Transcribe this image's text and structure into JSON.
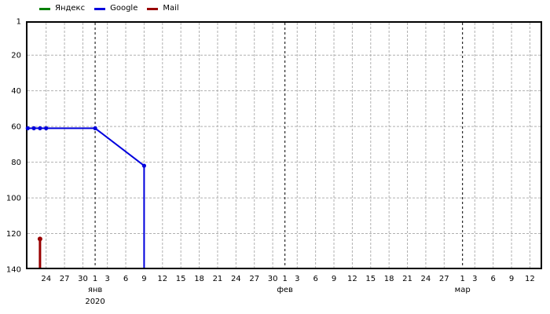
{
  "chart_data": {
    "type": "line",
    "title": "",
    "background": "#ffffff",
    "legend": {
      "position": "top-left",
      "items": [
        {
          "label": "Яндекс",
          "color": "#008000"
        },
        {
          "label": "Google",
          "color": "#0000dd"
        },
        {
          "label": "Mail",
          "color": "#990000"
        }
      ]
    },
    "y_axis": {
      "inverted": true,
      "min": 1,
      "max": 140,
      "ticks": [
        1,
        20,
        40,
        60,
        80,
        100,
        120,
        140
      ],
      "gridlines": "dashed-gray"
    },
    "x_axis": {
      "unit": "days-from-jan-1-2020",
      "domain_days": [
        -11.3,
        73
      ],
      "ticks": [
        {
          "day": -8,
          "label": "24"
        },
        {
          "day": -5,
          "label": "27"
        },
        {
          "day": -2,
          "label": "30"
        },
        {
          "day": 0,
          "label": "1"
        },
        {
          "day": 2,
          "label": "3"
        },
        {
          "day": 5,
          "label": "6"
        },
        {
          "day": 8,
          "label": "9"
        },
        {
          "day": 11,
          "label": "12"
        },
        {
          "day": 14,
          "label": "15"
        },
        {
          "day": 17,
          "label": "18"
        },
        {
          "day": 20,
          "label": "21"
        },
        {
          "day": 23,
          "label": "24"
        },
        {
          "day": 26,
          "label": "27"
        },
        {
          "day": 29,
          "label": "30"
        },
        {
          "day": 31,
          "label": "1"
        },
        {
          "day": 33,
          "label": "3"
        },
        {
          "day": 36,
          "label": "6"
        },
        {
          "day": 39,
          "label": "9"
        },
        {
          "day": 42,
          "label": "12"
        },
        {
          "day": 45,
          "label": "15"
        },
        {
          "day": 48,
          "label": "18"
        },
        {
          "day": 51,
          "label": "21"
        },
        {
          "day": 54,
          "label": "24"
        },
        {
          "day": 57,
          "label": "27"
        },
        {
          "day": 60,
          "label": "1"
        },
        {
          "day": 62,
          "label": "3"
        },
        {
          "day": 65,
          "label": "6"
        },
        {
          "day": 68,
          "label": "9"
        },
        {
          "day": 71,
          "label": "12"
        }
      ],
      "months": [
        {
          "day": 0,
          "label": "янв"
        },
        {
          "day": 31,
          "label": "фев"
        },
        {
          "day": 60,
          "label": "мар"
        }
      ],
      "year_label": "2020",
      "month_boundary_lines": "black-dashed"
    },
    "series": [
      {
        "name": "Яндекс",
        "color": "#008000",
        "line_width": 2,
        "marker_r": 2.6,
        "points": [],
        "drops_off_chart": false
      },
      {
        "name": "Google",
        "color": "#0000dd",
        "line_width": 2,
        "marker_r": 2.6,
        "points": [
          {
            "day": -11,
            "value": 61
          },
          {
            "day": -10,
            "value": 61
          },
          {
            "day": -9,
            "value": 61
          },
          {
            "day": -8,
            "value": 61
          },
          {
            "day": 0,
            "value": 61
          },
          {
            "day": 8,
            "value": 82
          }
        ],
        "drops_off_chart": true
      },
      {
        "name": "Mail",
        "color": "#990000",
        "line_width": 3,
        "marker_r": 3,
        "points": [
          {
            "day": -9,
            "value": 123
          }
        ],
        "drops_off_chart": true
      }
    ],
    "gridline_color": "#b0b0b0",
    "axis_color": "#000000"
  }
}
